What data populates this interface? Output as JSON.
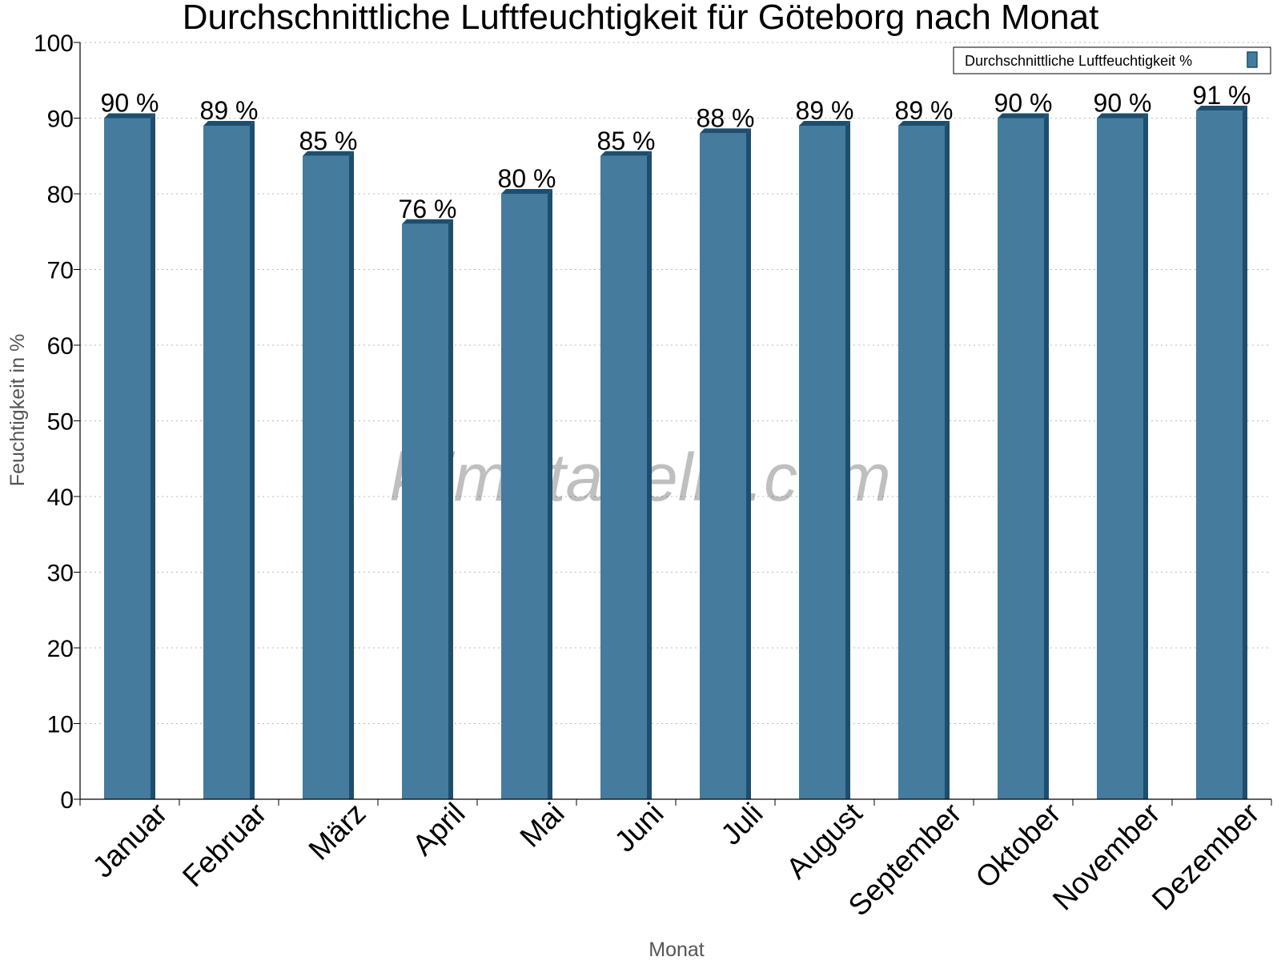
{
  "chart_data": {
    "type": "bar",
    "title": "Durchschnittliche Luftfeuchtigkeit für Göteborg nach Monat",
    "xlabel": "Monat",
    "ylabel": "Feuchtigkeit in %",
    "ylim": [
      0,
      100
    ],
    "yticks": [
      0,
      10,
      20,
      30,
      40,
      50,
      60,
      70,
      80,
      90,
      100
    ],
    "grid": "horizontal dotted",
    "legend_position": "top-right",
    "categories": [
      "Januar",
      "Februar",
      "März",
      "April",
      "Mai",
      "Juni",
      "Juli",
      "August",
      "September",
      "Oktober",
      "November",
      "Dezember"
    ],
    "series": [
      {
        "name": "Durchschnittliche Luftfeuchtigkeit %",
        "values": [
          90,
          89,
          85,
          76,
          80,
          85,
          88,
          89,
          89,
          90,
          90,
          91
        ],
        "labels": [
          "90 %",
          "89 %",
          "85 %",
          "76 %",
          "80 %",
          "85 %",
          "88 %",
          "89 %",
          "89 %",
          "90 %",
          "90 %",
          "91 %"
        ],
        "color": "#457b9d",
        "edge_color": "#1d4e6e"
      }
    ],
    "watermark": "klimatabelle.com"
  }
}
